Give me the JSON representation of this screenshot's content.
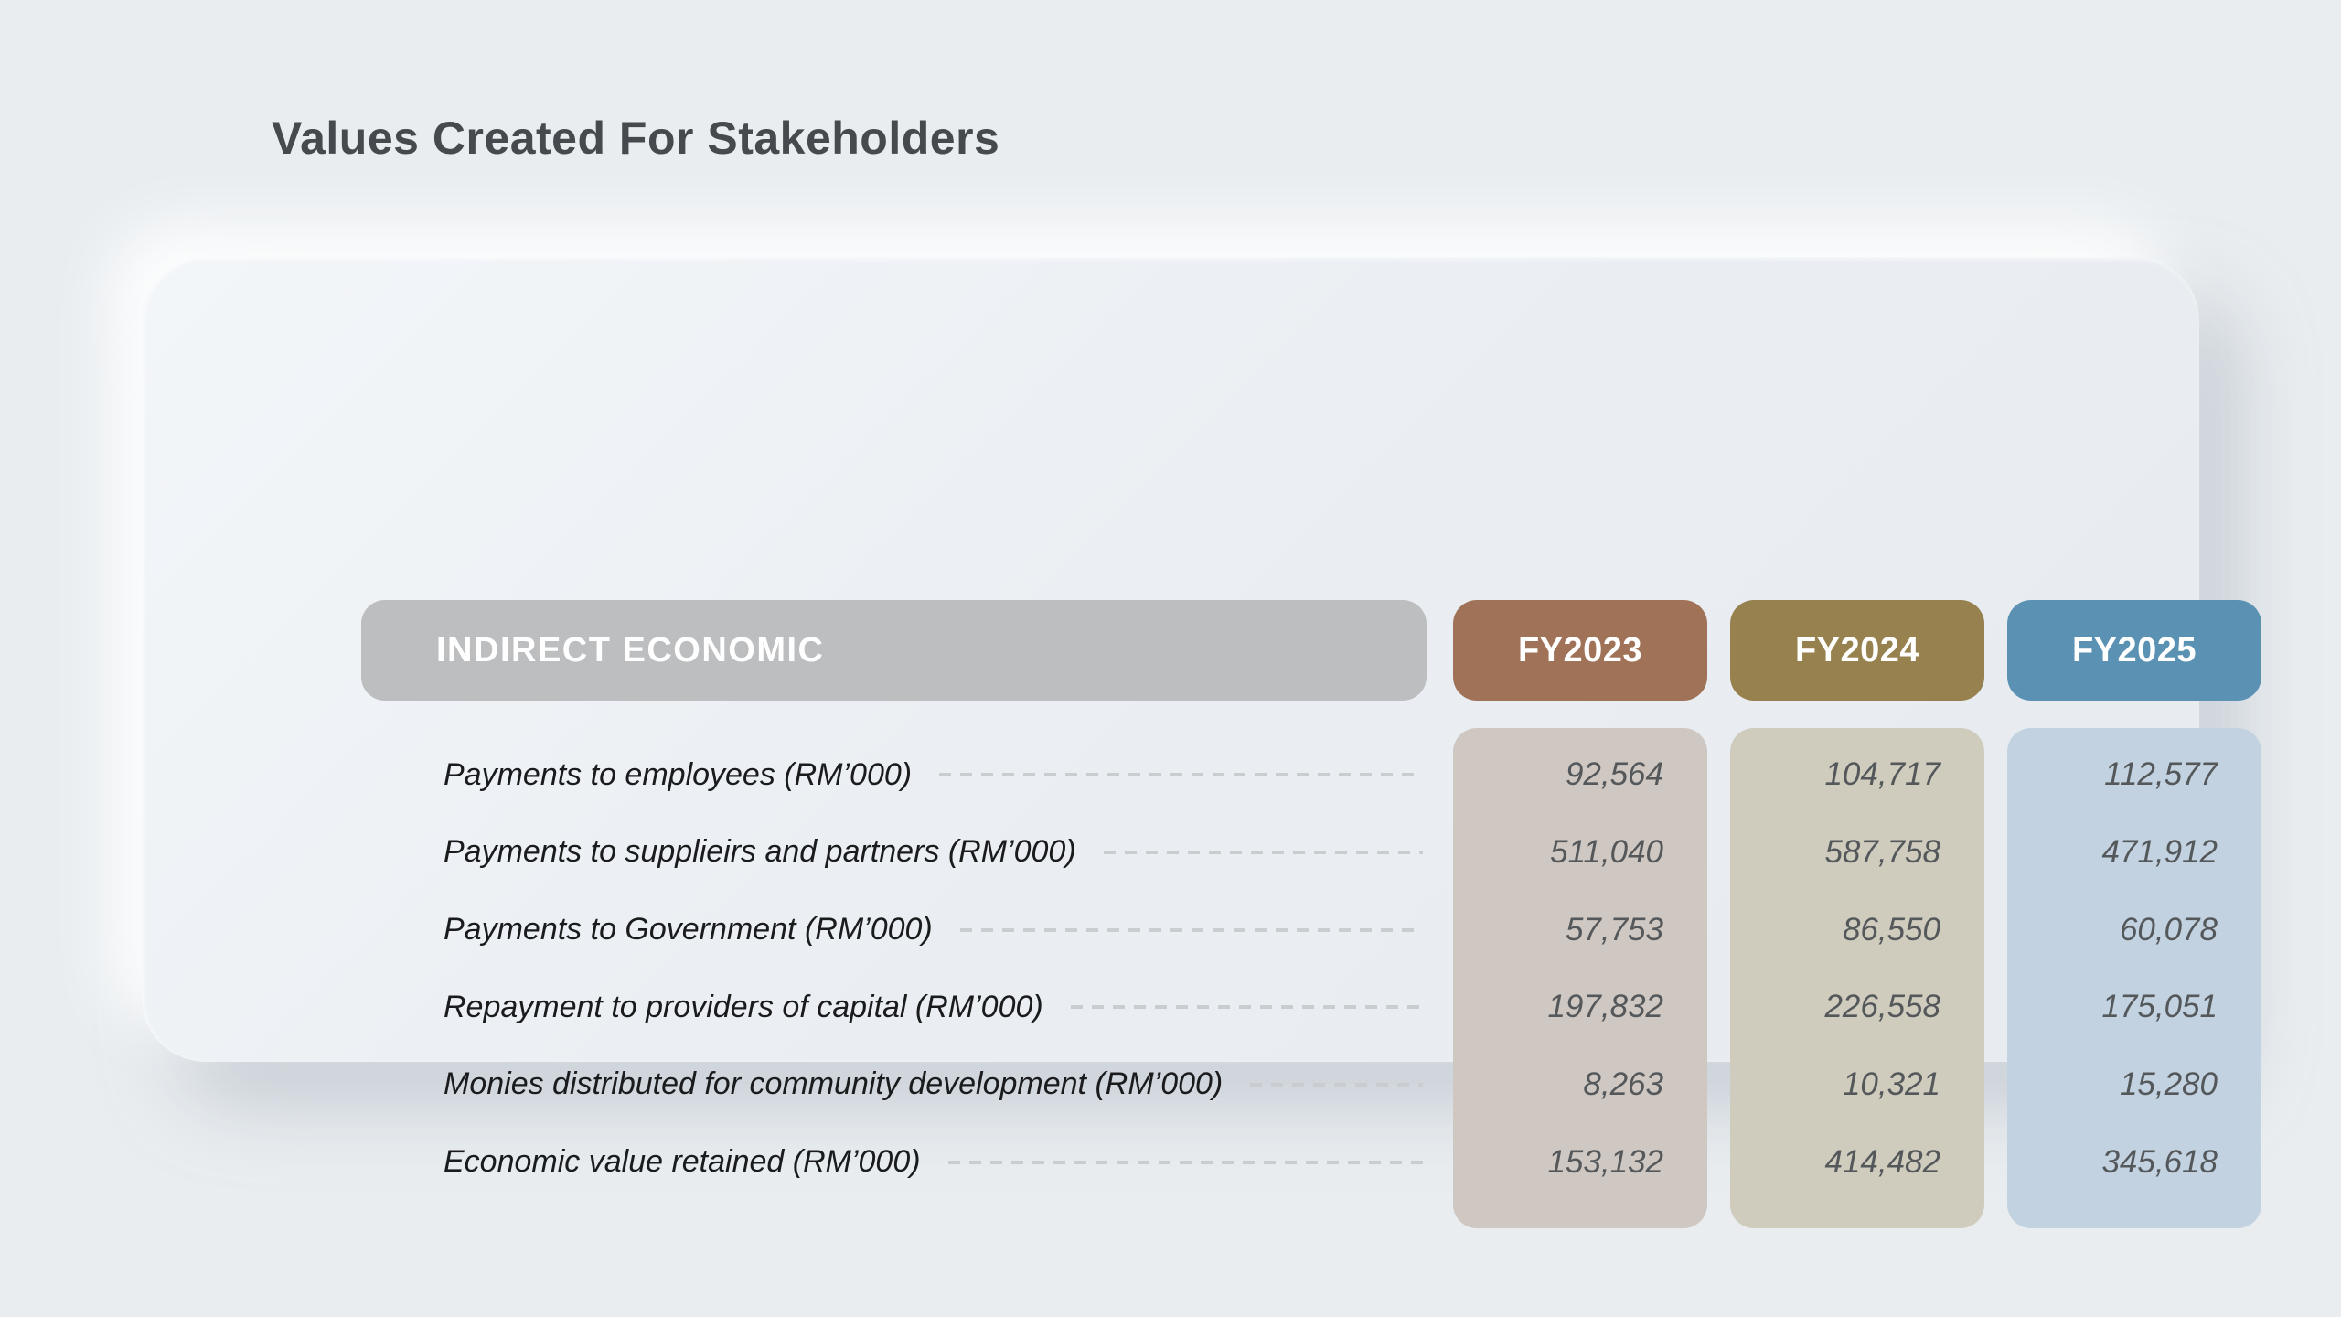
{
  "page": {
    "title": "Values Created For Stakeholders"
  },
  "table": {
    "category_header": "INDIRECT ECONOMIC",
    "rows": [
      {
        "label": "Payments to employees (RM’000)"
      },
      {
        "label": "Payments to supplieirs and partners (RM’000)"
      },
      {
        "label": "Payments to Government (RM’000)"
      },
      {
        "label": "Repayment to providers of capital (RM’000)"
      },
      {
        "label": "Monies distributed for community development (RM’000)"
      },
      {
        "label": "Economic value retained (RM’000)"
      }
    ],
    "columns": [
      {
        "label": "FY2023",
        "header_color": "#a07358",
        "body_color": "#cfc7c1",
        "values": [
          "92,564",
          "511,040",
          "57,753",
          "197,832",
          "8,263",
          "153,132"
        ]
      },
      {
        "label": "FY2024",
        "header_color": "#97824f",
        "body_color": "#cfccbe",
        "values": [
          "104,717",
          "587,758",
          "86,550",
          "226,558",
          "10,321",
          "414,482"
        ]
      },
      {
        "label": "FY2025",
        "header_color": "#5b92b4",
        "body_color": "#c2d2e0",
        "values": [
          "112,577",
          "471,912",
          "60,078",
          "175,051",
          "15,280",
          "345,618"
        ]
      }
    ]
  },
  "colors": {
    "page_background": "#e9edf0",
    "card_background": "#edf1f5",
    "category_header_background": "#bcbec0",
    "title_text": "#46494d",
    "label_text": "#1a1b1d",
    "value_text": "#54585b",
    "leader_dash": "#c9cdd0"
  },
  "chart_data": {
    "type": "table",
    "title": "Values Created For Stakeholders",
    "section": "INDIRECT ECONOMIC",
    "unit": "RM'000",
    "categories": [
      "FY2023",
      "FY2024",
      "FY2025"
    ],
    "series": [
      {
        "name": "Payments to employees (RM’000)",
        "values": [
          92564,
          104717,
          112577
        ]
      },
      {
        "name": "Payments to supplieirs and partners (RM’000)",
        "values": [
          511040,
          587758,
          471912
        ]
      },
      {
        "name": "Payments to Government (RM’000)",
        "values": [
          57753,
          86550,
          60078
        ]
      },
      {
        "name": "Repayment to providers of capital (RM’000)",
        "values": [
          197832,
          226558,
          175051
        ]
      },
      {
        "name": "Monies distributed for community development (RM’000)",
        "values": [
          8263,
          10321,
          15280
        ]
      },
      {
        "name": "Economic value retained (RM’000)",
        "values": [
          153132,
          414482,
          345618
        ]
      }
    ],
    "layout": {
      "legend": "none",
      "grid": "off",
      "value_alignment": "right"
    }
  }
}
